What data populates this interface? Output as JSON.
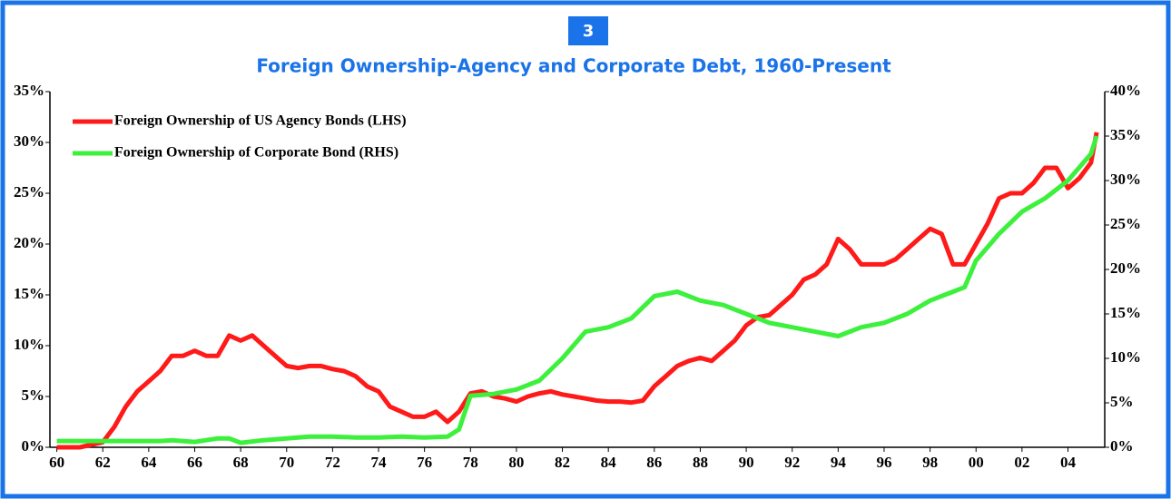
{
  "chart_data": {
    "type": "line",
    "badge": "3",
    "title": "Foreign Ownership-Agency and Corporate Debt, 1960-Present",
    "xlim": [
      1959.7,
      2005.6
    ],
    "xticks": [
      {
        "value": 1960,
        "label": "60"
      },
      {
        "value": 1962,
        "label": "62"
      },
      {
        "value": 1964,
        "label": "64"
      },
      {
        "value": 1966,
        "label": "66"
      },
      {
        "value": 1968,
        "label": "68"
      },
      {
        "value": 1970,
        "label": "70"
      },
      {
        "value": 1972,
        "label": "72"
      },
      {
        "value": 1974,
        "label": "74"
      },
      {
        "value": 1976,
        "label": "76"
      },
      {
        "value": 1978,
        "label": "78"
      },
      {
        "value": 1980,
        "label": "80"
      },
      {
        "value": 1982,
        "label": "82"
      },
      {
        "value": 1984,
        "label": "84"
      },
      {
        "value": 1986,
        "label": "86"
      },
      {
        "value": 1988,
        "label": "88"
      },
      {
        "value": 1990,
        "label": "90"
      },
      {
        "value": 1992,
        "label": "92"
      },
      {
        "value": 1994,
        "label": "94"
      },
      {
        "value": 1996,
        "label": "96"
      },
      {
        "value": 1998,
        "label": "98"
      },
      {
        "value": 2000,
        "label": "00"
      },
      {
        "value": 2002,
        "label": "02"
      },
      {
        "value": 2004,
        "label": "04"
      }
    ],
    "ylim": [
      0,
      35
    ],
    "yticks": [
      {
        "value": 0,
        "label": "0%"
      },
      {
        "value": 5,
        "label": "5%"
      },
      {
        "value": 10,
        "label": "10%"
      },
      {
        "value": 15,
        "label": "15%"
      },
      {
        "value": 20,
        "label": "20%"
      },
      {
        "value": 25,
        "label": "25%"
      },
      {
        "value": 30,
        "label": "30%"
      },
      {
        "value": 35,
        "label": "35%"
      }
    ],
    "y2lim": [
      0,
      40
    ],
    "y2ticks": [
      {
        "value": 0,
        "label": "0%"
      },
      {
        "value": 5,
        "label": "5%"
      },
      {
        "value": 10,
        "label": "10%"
      },
      {
        "value": 15,
        "label": "15%"
      },
      {
        "value": 20,
        "label": "20%"
      },
      {
        "value": 25,
        "label": "25%"
      },
      {
        "value": 30,
        "label": "30%"
      },
      {
        "value": 35,
        "label": "35%"
      },
      {
        "value": 40,
        "label": "40%"
      }
    ],
    "legend": "upper left",
    "series": [
      {
        "name": "Foreign Ownership of US Agency Bonds (LHS)",
        "color": "#ff1a1a",
        "axis": "y",
        "x": [
          1960,
          1961,
          1962,
          1962.5,
          1963,
          1963.5,
          1964,
          1964.5,
          1965,
          1965.5,
          1966,
          1966.5,
          1967,
          1967.5,
          1968,
          1968.5,
          1969,
          1969.5,
          1970,
          1970.5,
          1971,
          1971.5,
          1972,
          1972.5,
          1973,
          1973.5,
          1974,
          1974.5,
          1975,
          1975.5,
          1976,
          1976.5,
          1977,
          1977.5,
          1978,
          1978.5,
          1979,
          1979.5,
          1980,
          1980.5,
          1981,
          1981.5,
          1982,
          1982.5,
          1983,
          1983.5,
          1984,
          1984.5,
          1985,
          1985.5,
          1986,
          1986.5,
          1987,
          1987.5,
          1988,
          1988.5,
          1989,
          1989.5,
          1990,
          1990.5,
          1991,
          1991.5,
          1992,
          1992.5,
          1993,
          1993.5,
          1994,
          1994.5,
          1995,
          1995.5,
          1996,
          1996.5,
          1997,
          1997.5,
          1998,
          1998.5,
          1999,
          1999.5,
          2000,
          2000.5,
          2001,
          2001.5,
          2002,
          2002.5,
          2003,
          2003.5,
          2004,
          2004.5,
          2005,
          2005.25
        ],
        "values": [
          0,
          0,
          0.5,
          2,
          4,
          5.5,
          6.5,
          7.5,
          9,
          9,
          9.5,
          9,
          9,
          11,
          10.5,
          11,
          10,
          9,
          8,
          7.8,
          8,
          8,
          7.7,
          7.5,
          7,
          6,
          5.5,
          4,
          3.5,
          3,
          3,
          3.5,
          2.5,
          3.5,
          5.3,
          5.5,
          5,
          4.8,
          4.5,
          5,
          5.3,
          5.5,
          5.2,
          5,
          4.8,
          4.6,
          4.5,
          4.5,
          4.4,
          4.6,
          6,
          7,
          8,
          8.5,
          8.8,
          8.5,
          9.5,
          10.5,
          12,
          12.8,
          13,
          14,
          15,
          16.5,
          17,
          18,
          20.5,
          19.5,
          18,
          18,
          18,
          18.5,
          19.5,
          20.5,
          21.5,
          21,
          18,
          18,
          20,
          22,
          24.5,
          25,
          25,
          26,
          27.5,
          27.5,
          25.5,
          26.5,
          28,
          31
        ]
      },
      {
        "name": "Foreign Ownership of Corporate Bond (RHS)",
        "color": "#3cf03c",
        "axis": "y2",
        "x": [
          1960,
          1962,
          1964,
          1964.5,
          1965,
          1966,
          1967,
          1967.5,
          1968,
          1969,
          1970,
          1971,
          1972,
          1973,
          1974,
          1975,
          1976,
          1977,
          1977.5,
          1978,
          1979,
          1980,
          1981,
          1982,
          1983,
          1984,
          1985,
          1986,
          1987,
          1988,
          1989,
          1990,
          1991,
          1992,
          1993,
          1994,
          1995,
          1996,
          1997,
          1998,
          1999,
          1999.5,
          2000,
          2001,
          2002,
          2003,
          2004,
          2005,
          2005.25
        ],
        "values": [
          0.7,
          0.7,
          0.7,
          0.7,
          0.8,
          0.6,
          1.0,
          1.0,
          0.5,
          0.8,
          1.0,
          1.2,
          1.2,
          1.1,
          1.1,
          1.2,
          1.1,
          1.2,
          2.0,
          5.8,
          6.0,
          6.5,
          7.5,
          10,
          13,
          13.5,
          14.5,
          17,
          17.5,
          16.5,
          16,
          15,
          14,
          13.5,
          13,
          12.5,
          13.5,
          14,
          15,
          16.5,
          17.5,
          18,
          21,
          24,
          26.5,
          28,
          30,
          33,
          35
        ]
      }
    ]
  }
}
